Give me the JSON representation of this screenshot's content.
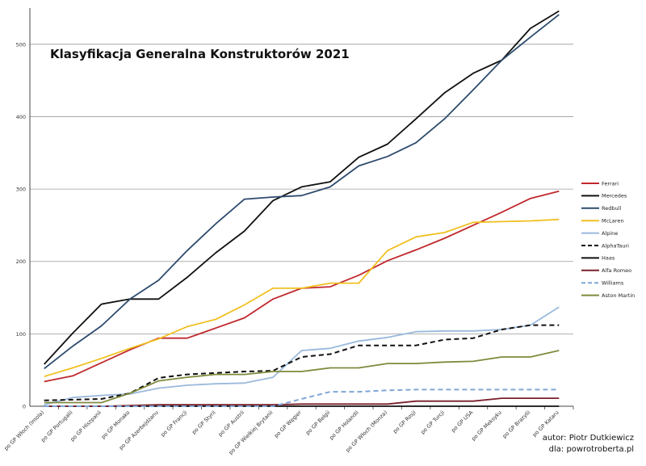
{
  "chart_data": {
    "type": "line",
    "title": "Klasyfikacja Generalna Konstruktorów 2021",
    "xlabel": "",
    "ylabel": "",
    "ylim": [
      0,
      550
    ],
    "yticks": [
      0,
      100,
      200,
      300,
      400,
      500
    ],
    "grid": true,
    "legend_position": "right",
    "categories": [
      "po GP Włoch (Imola)",
      "po GP Portugalii",
      "po GP Hiszpanii",
      "po GP Monako",
      "po GP Azerbejdżanu",
      "po GP Francji",
      "po GP Styrii",
      "po GP Austrii",
      "po GP Wielkiej Brytanii",
      "po GP Węgier",
      "po GP Belgii",
      "po GP Holandii",
      "po GP Włoch (Monza)",
      "po GP Rosji",
      "po GP Turcji",
      "po GP USA",
      "po GP Meksyku",
      "po GP Brazylii",
      "po GP Kataru"
    ],
    "series": [
      {
        "name": "Ferrari",
        "color": "#c0282d",
        "dash": false,
        "values": [
          34,
          42,
          60,
          78,
          94,
          94,
          108,
          122,
          148,
          163,
          165,
          181,
          201,
          216,
          232,
          250,
          268,
          287,
          297
        ]
      },
      {
        "name": "Mercedes",
        "color": "#111111",
        "dash": false,
        "values": [
          58,
          101,
          141,
          148,
          148,
          178,
          212,
          242,
          284,
          303,
          310,
          344,
          362,
          397,
          433,
          460,
          478,
          522,
          546
        ]
      },
      {
        "name": "Redbull",
        "color": "#2e4b6e",
        "dash": false,
        "values": [
          52,
          83,
          111,
          148,
          174,
          215,
          252,
          286,
          289,
          291,
          303,
          332,
          345,
          364,
          397,
          437,
          478,
          510,
          541
        ]
      },
      {
        "name": "McLaren",
        "color": "#f0c020",
        "dash": false,
        "values": [
          41,
          53,
          66,
          80,
          93,
          110,
          120,
          140,
          163,
          163,
          170,
          170,
          215,
          234,
          240,
          254,
          255,
          256,
          258
        ]
      },
      {
        "name": "Alpine",
        "color": "#9ab9dc",
        "dash": false,
        "values": [
          2,
          12,
          15,
          17,
          25,
          29,
          31,
          32,
          40,
          77,
          80,
          90,
          95,
          103,
          104,
          104,
          106,
          112,
          137
        ]
      },
      {
        "name": "AlphaTauri",
        "color": "#111111",
        "dash": true,
        "values": [
          8,
          9,
          10,
          18,
          39,
          44,
          46,
          48,
          49,
          68,
          72,
          84,
          84,
          84,
          92,
          94,
          106,
          112,
          112
        ]
      },
      {
        "name": "Haas",
        "color": "#111111",
        "dash": false,
        "values": [
          0,
          0,
          0,
          0,
          0,
          0,
          0,
          0,
          0,
          0,
          0,
          0,
          0,
          0,
          0,
          0,
          0,
          0,
          0
        ]
      },
      {
        "name": "Alfa Romeo",
        "color": "#7a1f2b",
        "dash": false,
        "values": [
          0,
          0,
          0,
          1,
          2,
          2,
          2,
          2,
          2,
          3,
          3,
          3,
          3,
          7,
          7,
          7,
          11,
          11,
          11
        ]
      },
      {
        "name": "Williams",
        "color": "#7fa6d6",
        "dash": true,
        "values": [
          0,
          0,
          0,
          0,
          0,
          0,
          0,
          0,
          0,
          10,
          20,
          20,
          22,
          23,
          23,
          23,
          23,
          23,
          23
        ]
      },
      {
        "name": "Aston Martin",
        "color": "#7f8a3c",
        "dash": false,
        "values": [
          5,
          5,
          5,
          18,
          35,
          40,
          44,
          44,
          48,
          48,
          53,
          53,
          59,
          59,
          61,
          62,
          68,
          68,
          77
        ]
      }
    ]
  },
  "credits": {
    "author": "autor: Piotr Dutkiewicz",
    "for": "dla: powrotroberta.pl"
  }
}
